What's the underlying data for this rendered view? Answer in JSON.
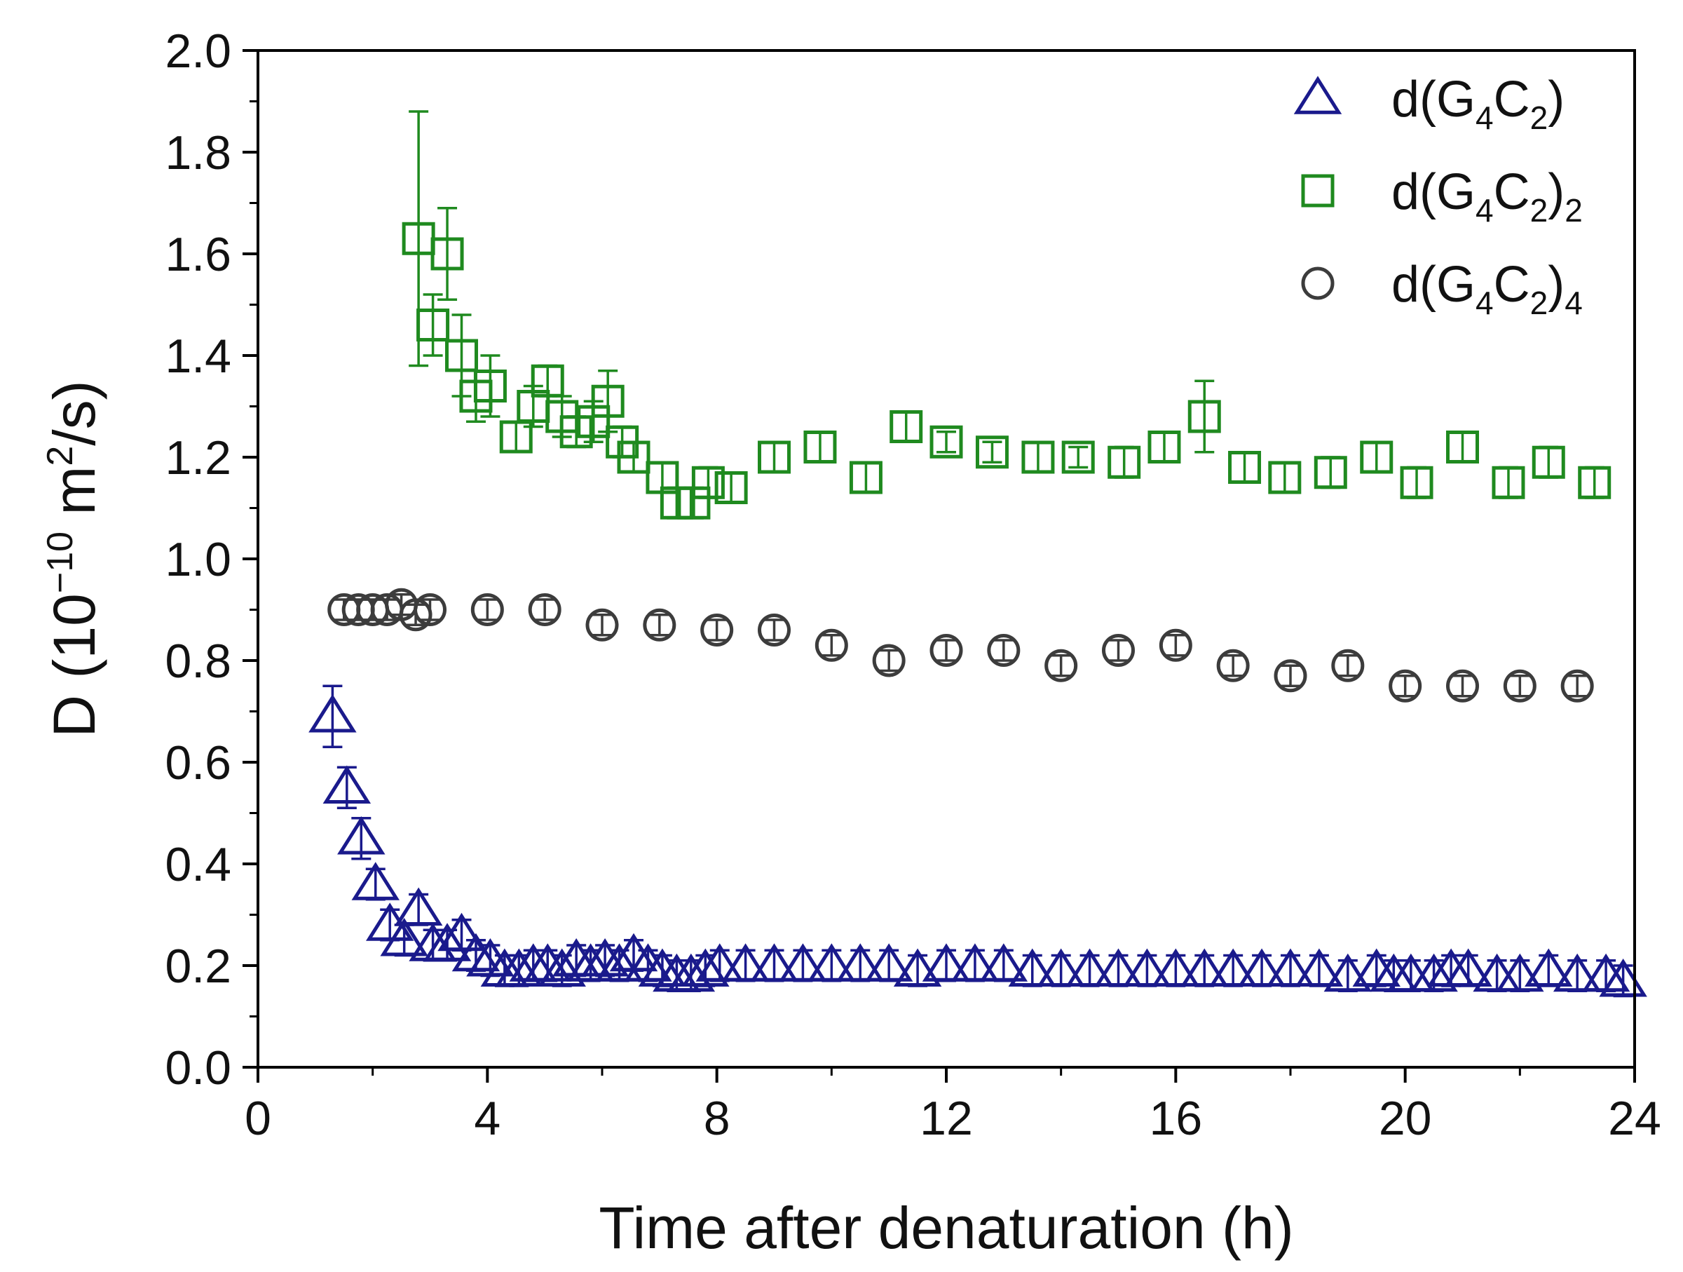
{
  "chart_data": {
    "type": "scatter",
    "xlabel": "Time after denaturation (h)",
    "ylabel_parts": [
      "D (10",
      "−10",
      " m",
      "2",
      "/s)"
    ],
    "xlim": [
      0,
      24
    ],
    "ylim": [
      0.0,
      2.0
    ],
    "x_ticks": [
      "0",
      "4",
      "8",
      "12",
      "16",
      "20",
      "24"
    ],
    "y_ticks": [
      "0.0",
      "0.2",
      "0.4",
      "0.6",
      "0.8",
      "1.0",
      "1.2",
      "1.4",
      "1.6",
      "1.8",
      "2.0"
    ],
    "grid": false,
    "legend_position": "top-right",
    "series": [
      {
        "name": "d(G4C2)",
        "label_parts": [
          "d(G",
          "4",
          "C",
          "2",
          ")",
          ""
        ],
        "marker": "triangle",
        "color": "#1a1a8c",
        "points": [
          [
            1.3,
            0.69,
            0.06
          ],
          [
            1.55,
            0.55,
            0.04
          ],
          [
            1.8,
            0.45,
            0.04
          ],
          [
            2.05,
            0.36,
            0.03
          ],
          [
            2.3,
            0.28,
            0.03
          ],
          [
            2.55,
            0.25,
            0.03
          ],
          [
            2.8,
            0.31,
            0.03
          ],
          [
            3.05,
            0.24,
            0.03
          ],
          [
            3.3,
            0.24,
            0.03
          ],
          [
            3.55,
            0.26,
            0.03
          ],
          [
            3.8,
            0.22,
            0.03
          ],
          [
            4.05,
            0.21,
            0.03
          ],
          [
            4.3,
            0.19,
            0.03
          ],
          [
            4.55,
            0.19,
            0.03
          ],
          [
            4.8,
            0.2,
            0.03
          ],
          [
            5.05,
            0.2,
            0.03
          ],
          [
            5.3,
            0.19,
            0.03
          ],
          [
            5.55,
            0.21,
            0.03
          ],
          [
            5.8,
            0.2,
            0.03
          ],
          [
            6.05,
            0.21,
            0.03
          ],
          [
            6.3,
            0.2,
            0.03
          ],
          [
            6.55,
            0.22,
            0.03
          ],
          [
            6.8,
            0.2,
            0.03
          ],
          [
            7.05,
            0.19,
            0.03
          ],
          [
            7.3,
            0.18,
            0.03
          ],
          [
            7.55,
            0.18,
            0.03
          ],
          [
            7.8,
            0.19,
            0.03
          ],
          [
            8.05,
            0.2,
            0.03
          ],
          [
            8.5,
            0.2,
            0.03
          ],
          [
            9.0,
            0.2,
            0.03
          ],
          [
            9.5,
            0.2,
            0.03
          ],
          [
            10.0,
            0.2,
            0.03
          ],
          [
            10.5,
            0.2,
            0.03
          ],
          [
            11.0,
            0.2,
            0.03
          ],
          [
            11.5,
            0.19,
            0.03
          ],
          [
            12.0,
            0.2,
            0.03
          ],
          [
            12.5,
            0.2,
            0.03
          ],
          [
            13.0,
            0.2,
            0.03
          ],
          [
            13.5,
            0.19,
            0.03
          ],
          [
            14.0,
            0.19,
            0.03
          ],
          [
            14.5,
            0.19,
            0.03
          ],
          [
            15.0,
            0.19,
            0.03
          ],
          [
            15.5,
            0.19,
            0.03
          ],
          [
            16.0,
            0.19,
            0.03
          ],
          [
            16.5,
            0.19,
            0.03
          ],
          [
            17.0,
            0.19,
            0.03
          ],
          [
            17.5,
            0.19,
            0.03
          ],
          [
            18.0,
            0.19,
            0.03
          ],
          [
            18.5,
            0.19,
            0.03
          ],
          [
            19.0,
            0.18,
            0.03
          ],
          [
            19.5,
            0.19,
            0.03
          ],
          [
            19.8,
            0.18,
            0.03
          ],
          [
            20.1,
            0.18,
            0.03
          ],
          [
            20.5,
            0.18,
            0.03
          ],
          [
            20.8,
            0.19,
            0.03
          ],
          [
            21.1,
            0.19,
            0.03
          ],
          [
            21.6,
            0.18,
            0.03
          ],
          [
            22.0,
            0.18,
            0.03
          ],
          [
            22.5,
            0.19,
            0.03
          ],
          [
            23.0,
            0.18,
            0.03
          ],
          [
            23.5,
            0.18,
            0.03
          ],
          [
            23.8,
            0.17,
            0.03
          ]
        ]
      },
      {
        "name": "d(G4C2)2",
        "label_parts": [
          "d(G",
          "4",
          "C",
          "2",
          ")",
          "2"
        ],
        "marker": "square",
        "color": "#1f8a1f",
        "points": [
          [
            2.8,
            1.63,
            0.25
          ],
          [
            3.05,
            1.46,
            0.06
          ],
          [
            3.3,
            1.6,
            0.09
          ],
          [
            3.55,
            1.4,
            0.08
          ],
          [
            3.8,
            1.32,
            0.05
          ],
          [
            4.05,
            1.34,
            0.06
          ],
          [
            4.5,
            1.24,
            0.03
          ],
          [
            4.8,
            1.3,
            0.04
          ],
          [
            5.05,
            1.35,
            0.03
          ],
          [
            5.3,
            1.28,
            0.04
          ],
          [
            5.55,
            1.25,
            0.03
          ],
          [
            5.85,
            1.27,
            0.04
          ],
          [
            6.1,
            1.31,
            0.06
          ],
          [
            6.35,
            1.23,
            0.03
          ],
          [
            6.55,
            1.2,
            0.03
          ],
          [
            7.05,
            1.16,
            0.03
          ],
          [
            7.3,
            1.11,
            0.03
          ],
          [
            7.6,
            1.11,
            0.03
          ],
          [
            7.85,
            1.15,
            0.03
          ],
          [
            8.25,
            1.14,
            0.03
          ],
          [
            9.0,
            1.2,
            0.03
          ],
          [
            9.8,
            1.22,
            0.03
          ],
          [
            10.6,
            1.16,
            0.03
          ],
          [
            11.3,
            1.26,
            0.03
          ],
          [
            12.0,
            1.23,
            0.02
          ],
          [
            12.8,
            1.21,
            0.02
          ],
          [
            13.6,
            1.2,
            0.03
          ],
          [
            14.3,
            1.2,
            0.02
          ],
          [
            15.1,
            1.19,
            0.03
          ],
          [
            15.8,
            1.22,
            0.03
          ],
          [
            16.5,
            1.28,
            0.07
          ],
          [
            17.2,
            1.18,
            0.03
          ],
          [
            17.9,
            1.16,
            0.03
          ],
          [
            18.7,
            1.17,
            0.03
          ],
          [
            19.5,
            1.2,
            0.03
          ],
          [
            20.2,
            1.15,
            0.03
          ],
          [
            21.0,
            1.22,
            0.03
          ],
          [
            21.8,
            1.15,
            0.03
          ],
          [
            22.5,
            1.19,
            0.03
          ],
          [
            23.3,
            1.15,
            0.03
          ]
        ]
      },
      {
        "name": "d(G4C2)4",
        "label_parts": [
          "d(G",
          "4",
          "C",
          "2",
          ")",
          "4"
        ],
        "marker": "circle",
        "color": "#3c3c3c",
        "points": [
          [
            1.5,
            0.9,
            0.02
          ],
          [
            1.75,
            0.9,
            0.02
          ],
          [
            2.0,
            0.9,
            0.02
          ],
          [
            2.25,
            0.9,
            0.02
          ],
          [
            2.5,
            0.91,
            0.02
          ],
          [
            2.75,
            0.89,
            0.02
          ],
          [
            3.0,
            0.9,
            0.02
          ],
          [
            4.0,
            0.9,
            0.02
          ],
          [
            5.0,
            0.9,
            0.02
          ],
          [
            6.0,
            0.87,
            0.02
          ],
          [
            7.0,
            0.87,
            0.02
          ],
          [
            8.0,
            0.86,
            0.02
          ],
          [
            9.0,
            0.86,
            0.02
          ],
          [
            10.0,
            0.83,
            0.02
          ],
          [
            11.0,
            0.8,
            0.02
          ],
          [
            12.0,
            0.82,
            0.02
          ],
          [
            13.0,
            0.82,
            0.02
          ],
          [
            14.0,
            0.79,
            0.02
          ],
          [
            15.0,
            0.82,
            0.02
          ],
          [
            16.0,
            0.83,
            0.02
          ],
          [
            17.0,
            0.79,
            0.02
          ],
          [
            18.0,
            0.77,
            0.02
          ],
          [
            19.0,
            0.79,
            0.02
          ],
          [
            20.0,
            0.75,
            0.02
          ],
          [
            21.0,
            0.75,
            0.02
          ],
          [
            22.0,
            0.75,
            0.02
          ],
          [
            23.0,
            0.75,
            0.02
          ]
        ]
      }
    ]
  }
}
